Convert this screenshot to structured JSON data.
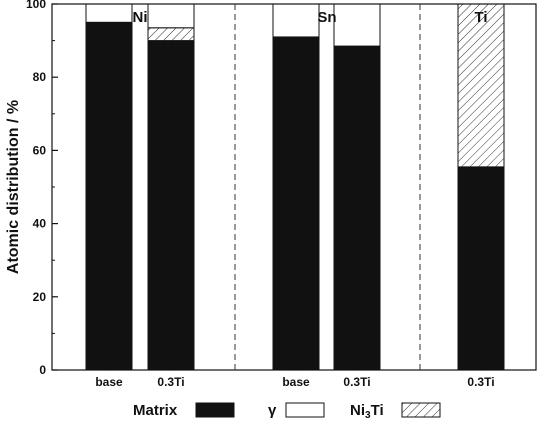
{
  "chart_data": {
    "type": "bar",
    "stacked": true,
    "ylabel": "Atomic distribution / %",
    "ylim": [
      0,
      100
    ],
    "yticks": [
      0,
      20,
      40,
      60,
      80,
      100
    ],
    "grid": false,
    "legend_position": "bottom",
    "groups": [
      {
        "label": "Ni",
        "categories": [
          "base",
          "0.3Ti"
        ]
      },
      {
        "label": "Sn",
        "categories": [
          "base",
          "0.3Ti"
        ]
      },
      {
        "label": "Ti",
        "categories": [
          "0.3Ti"
        ]
      }
    ],
    "bars": [
      {
        "group": "Ni",
        "category": "base",
        "Matrix": 95,
        "gamma": 5,
        "Ni3Ti": 0
      },
      {
        "group": "Ni",
        "category": "0.3Ti",
        "Matrix": 90,
        "gamma": 6.5,
        "Ni3Ti": 3.5
      },
      {
        "group": "Sn",
        "category": "base",
        "Matrix": 91,
        "gamma": 9,
        "Ni3Ti": 0
      },
      {
        "group": "Sn",
        "category": "0.3Ti",
        "Matrix": 88.5,
        "gamma": 11.5,
        "Ni3Ti": 0
      },
      {
        "group": "Ti",
        "category": "0.3Ti",
        "Matrix": 55.5,
        "gamma": 0,
        "Ni3Ti": 44.5
      }
    ],
    "series": [
      {
        "key": "Matrix",
        "name": "Matrix",
        "fill": "#111111",
        "pattern": "solid"
      },
      {
        "key": "Ni3Ti",
        "name_main": "Ni",
        "name_sub": "3",
        "name_tail": "Ti",
        "fill": "#ffffff",
        "pattern": "hatch"
      },
      {
        "key": "gamma",
        "name": "γ",
        "fill": "#ffffff",
        "pattern": "empty"
      }
    ],
    "legend": [
      {
        "key": "Matrix",
        "label": "Matrix"
      },
      {
        "key": "gamma",
        "label": "γ"
      },
      {
        "key": "Ni3Ti",
        "label_main": "Ni",
        "label_sub": "3",
        "label_tail": "Ti"
      }
    ]
  }
}
